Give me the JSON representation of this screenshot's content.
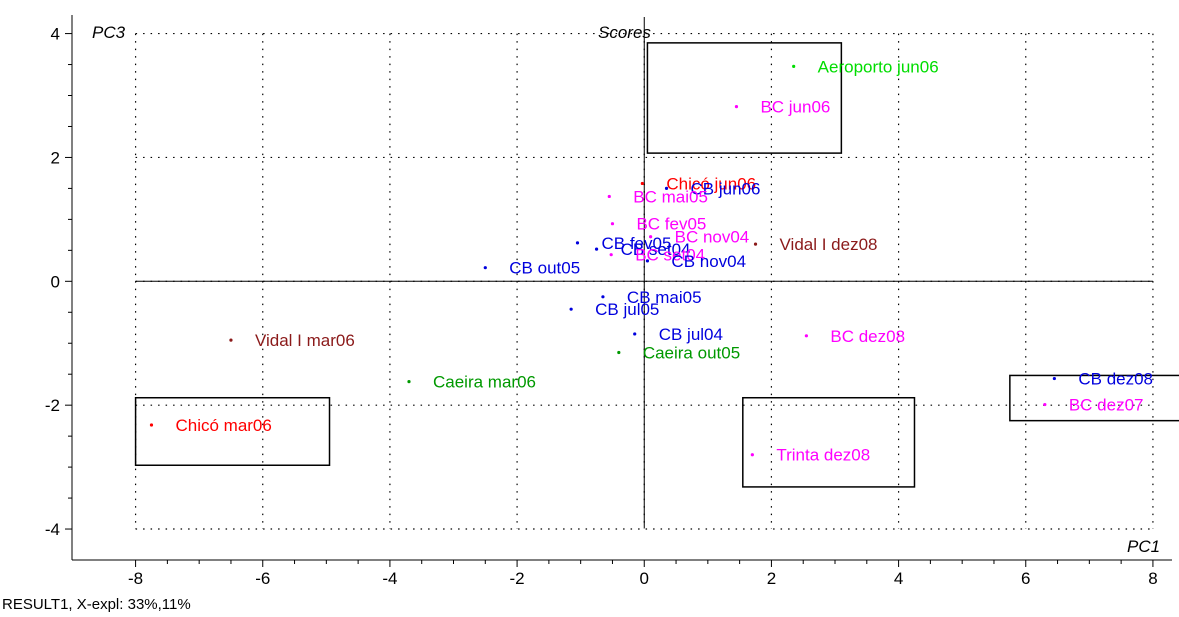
{
  "chart_data": {
    "type": "scatter",
    "title": "Scores",
    "xlabel": "PC1",
    "ylabel": "PC3",
    "xlim": [
      -9.0,
      8.3
    ],
    "ylim": [
      -4.5,
      4.3
    ],
    "xticks": [
      -8,
      -6,
      -4,
      -2,
      0,
      2,
      4,
      6,
      8
    ],
    "yticks": [
      -4,
      -2,
      0,
      2,
      4
    ],
    "grid": "dotted",
    "points": [
      {
        "label": "Aeroporto jun06",
        "x": 2.35,
        "y": 3.47,
        "color": "#00dd00"
      },
      {
        "label": "BC jun06",
        "x": 1.45,
        "y": 2.82,
        "color": "#ff00ff"
      },
      {
        "label": "Chicó jun06",
        "x": -0.03,
        "y": 1.58,
        "color": "#ff0000"
      },
      {
        "label": "CB jun06",
        "x": 0.35,
        "y": 1.5,
        "color": "#0000dd"
      },
      {
        "label": "BC mai05",
        "x": -0.55,
        "y": 1.37,
        "color": "#ff00ff"
      },
      {
        "label": "BC fev05",
        "x": -0.5,
        "y": 0.93,
        "color": "#ff00ff"
      },
      {
        "label": "BC nov04",
        "x": 0.1,
        "y": 0.72,
        "color": "#ff00ff"
      },
      {
        "label": "CB fev05",
        "x": -1.05,
        "y": 0.62,
        "color": "#0000dd"
      },
      {
        "label": "CB set04",
        "x": -0.75,
        "y": 0.52,
        "color": "#0000dd"
      },
      {
        "label": "BC set04",
        "x": -0.52,
        "y": 0.43,
        "color": "#ff00ff"
      },
      {
        "label": "CB nov04",
        "x": 0.05,
        "y": 0.33,
        "color": "#0000dd"
      },
      {
        "label": "Vidal I dez08",
        "x": 1.75,
        "y": 0.6,
        "color": "#8b1a1a"
      },
      {
        "label": "CB out05",
        "x": -2.5,
        "y": 0.22,
        "color": "#0000dd"
      },
      {
        "label": "CB mai05",
        "x": -0.65,
        "y": -0.25,
        "color": "#0000dd"
      },
      {
        "label": "CB jul05",
        "x": -1.15,
        "y": -0.45,
        "color": "#0000dd"
      },
      {
        "label": "CB jul04",
        "x": -0.15,
        "y": -0.85,
        "color": "#0000dd"
      },
      {
        "label": "BC dez08",
        "x": 2.55,
        "y": -0.88,
        "color": "#ff00ff"
      },
      {
        "label": "Caeira out05",
        "x": -0.4,
        "y": -1.15,
        "color": "#009900"
      },
      {
        "label": "Vidal I mar06",
        "x": -6.5,
        "y": -0.95,
        "color": "#8b1a1a"
      },
      {
        "label": "Caeira mar06",
        "x": -3.7,
        "y": -1.62,
        "color": "#009900"
      },
      {
        "label": "Chicó mar06",
        "x": -7.75,
        "y": -2.32,
        "color": "#ff0000"
      },
      {
        "label": "Trinta dez08",
        "x": 1.7,
        "y": -2.8,
        "color": "#ff00ff"
      },
      {
        "label": "CB dez08",
        "x": 6.45,
        "y": -1.57,
        "color": "#0000dd"
      },
      {
        "label": "BC dez07",
        "x": 6.3,
        "y": -1.99,
        "color": "#ff00ff"
      }
    ],
    "boxes": [
      {
        "x0": 0.05,
        "x1": 3.1,
        "y0": 2.07,
        "y1": 3.85
      },
      {
        "x0": -8.0,
        "x1": -4.95,
        "y0": -2.97,
        "y1": -1.88
      },
      {
        "x0": 1.55,
        "x1": 4.25,
        "y0": -3.32,
        "y1": -1.88
      },
      {
        "x0": 5.75,
        "x1": 8.45,
        "y0": -2.25,
        "y1": -1.52
      }
    ]
  },
  "footer": "RESULT1, X-expl: 33%,11%"
}
